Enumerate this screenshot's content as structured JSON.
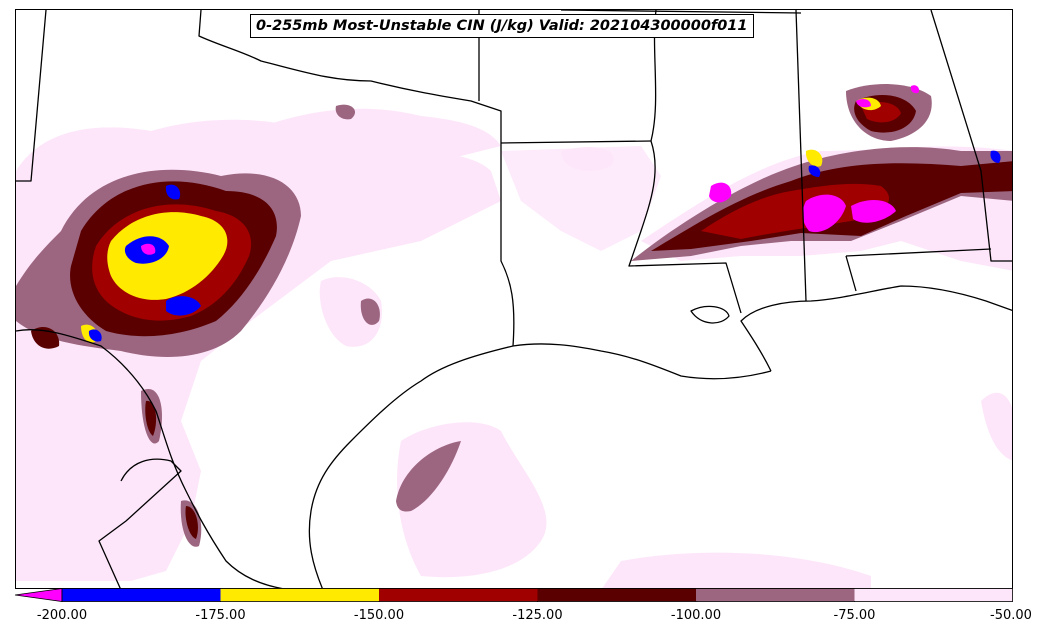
{
  "title": "0-255mb Most-Unstable CIN (J/kg) Valid: 202104300000f011",
  "colorbar": {
    "ticks": [
      "-200.00",
      "-175.00",
      "-150.00",
      "-125.00",
      "-100.00",
      "-75.00",
      "-50.00"
    ],
    "min": -200,
    "max": -50,
    "extend": "min",
    "under_color": "#ff00ff",
    "bins": [
      {
        "from": -200,
        "to": -175,
        "color": "#0000ff"
      },
      {
        "from": -175,
        "to": -150,
        "color": "#ffea00"
      },
      {
        "from": -150,
        "to": -125,
        "color": "#a00000"
      },
      {
        "from": -125,
        "to": -100,
        "color": "#5a0000"
      },
      {
        "from": -100,
        "to": -75,
        "color": "#9c6680"
      },
      {
        "from": -75,
        "to": -50,
        "color": "#fde6fa"
      }
    ]
  },
  "colors": {
    "boundary": "#000000",
    "background": "#ffffff"
  }
}
